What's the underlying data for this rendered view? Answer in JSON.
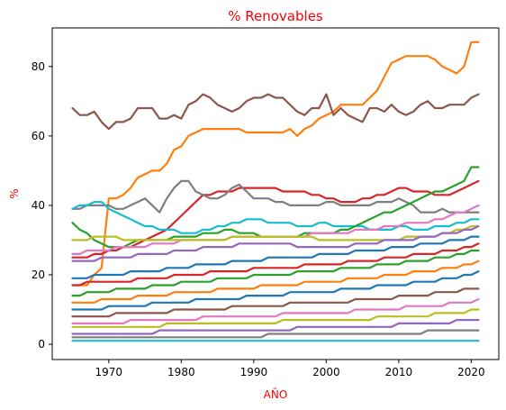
{
  "chart_data": {
    "type": "line",
    "title": "% Renovables",
    "xlabel": "AÑO",
    "ylabel": "%",
    "label_color": "#ff0000",
    "xlim": [
      1962.2,
      2023.8
    ],
    "ylim": [
      -4.4,
      91.1
    ],
    "xticks": [
      1970,
      1980,
      1990,
      2000,
      2010,
      2020
    ],
    "yticks": [
      0,
      20,
      40,
      60,
      80
    ],
    "grid": false,
    "legend": "none",
    "palette": [
      "#1f77b4",
      "#ff7f0e",
      "#2ca02c",
      "#d62728",
      "#9467bd",
      "#8c564b",
      "#e377c2",
      "#7f7f7f",
      "#bcbd22",
      "#17becf"
    ],
    "x": [
      1965,
      1966,
      1967,
      1968,
      1969,
      1970,
      1971,
      1972,
      1973,
      1974,
      1975,
      1976,
      1977,
      1978,
      1979,
      1980,
      1981,
      1982,
      1983,
      1984,
      1985,
      1986,
      1987,
      1988,
      1989,
      1990,
      1991,
      1992,
      1993,
      1994,
      1995,
      1996,
      1997,
      1998,
      1999,
      2000,
      2001,
      2002,
      2003,
      2004,
      2005,
      2006,
      2007,
      2008,
      2009,
      2010,
      2011,
      2012,
      2013,
      2014,
      2015,
      2016,
      2017,
      2018,
      2019,
      2020,
      2021
    ],
    "series": [
      {
        "color": "#ff7f0e",
        "values": [
          17,
          17,
          17,
          20,
          22,
          42,
          42,
          43,
          45,
          48,
          49,
          50,
          50,
          52,
          56,
          57,
          60,
          61,
          62,
          62,
          62,
          62,
          62,
          62,
          61,
          61,
          61,
          61,
          61,
          61,
          62,
          60,
          62,
          63,
          65,
          66,
          67,
          69,
          69,
          69,
          69,
          71,
          73,
          77,
          81,
          82,
          83,
          83,
          83,
          83,
          82,
          80,
          79,
          78,
          80,
          87,
          87
        ]
      },
      {
        "color": "#8c564b",
        "values": [
          68,
          66,
          66,
          67,
          64,
          62,
          64,
          64,
          65,
          68,
          68,
          68,
          65,
          65,
          66,
          65,
          69,
          70,
          72,
          71,
          69,
          68,
          67,
          68,
          70,
          71,
          71,
          72,
          71,
          71,
          69,
          67,
          66,
          68,
          68,
          72,
          66,
          68,
          66,
          65,
          64,
          68,
          68,
          67,
          69,
          67,
          66,
          67,
          69,
          70,
          68,
          68,
          69,
          69,
          69,
          71,
          72
        ]
      },
      {
        "color": "#d62728",
        "values": [
          25,
          25,
          25,
          26,
          26,
          27,
          27,
          28,
          28,
          29,
          30,
          31,
          32,
          33,
          35,
          37,
          39,
          41,
          43,
          43,
          44,
          44,
          44,
          45,
          45,
          45,
          45,
          45,
          45,
          44,
          44,
          44,
          44,
          43,
          43,
          42,
          42,
          41,
          41,
          41,
          42,
          42,
          43,
          43,
          44,
          45,
          45,
          44,
          44,
          44,
          43,
          43,
          43,
          44,
          45,
          46,
          47
        ]
      },
      {
        "color": "#7f7f7f",
        "values": [
          39,
          39,
          40,
          40,
          40,
          40,
          39,
          39,
          40,
          41,
          42,
          40,
          38,
          42,
          45,
          47,
          47,
          44,
          43,
          42,
          42,
          43,
          45,
          46,
          44,
          42,
          42,
          42,
          41,
          41,
          40,
          40,
          40,
          40,
          40,
          41,
          41,
          40,
          40,
          40,
          40,
          40,
          41,
          41,
          41,
          42,
          41,
          40,
          38,
          38,
          38,
          39,
          38,
          38,
          38,
          38,
          38
        ]
      },
      {
        "color": "#17becf",
        "values": [
          39,
          40,
          40,
          41,
          41,
          39,
          38,
          37,
          36,
          35,
          34,
          34,
          33,
          33,
          33,
          32,
          32,
          32,
          33,
          33,
          34,
          34,
          35,
          35,
          36,
          36,
          36,
          35,
          35,
          35,
          35,
          34,
          34,
          34,
          35,
          35,
          34,
          34,
          34,
          34,
          34,
          33,
          33,
          33,
          33,
          34,
          34,
          33,
          33,
          33,
          34,
          34,
          34,
          35,
          35,
          36,
          36
        ]
      },
      {
        "color": "#2ca02c",
        "values": [
          35,
          33,
          32,
          30,
          29,
          28,
          28,
          28,
          29,
          30,
          30,
          30,
          30,
          30,
          31,
          31,
          31,
          31,
          32,
          32,
          32,
          33,
          33,
          32,
          32,
          32,
          31,
          31,
          31,
          31,
          31,
          31,
          32,
          32,
          32,
          32,
          32,
          33,
          33,
          34,
          35,
          36,
          37,
          38,
          38,
          39,
          40,
          41,
          42,
          43,
          44,
          44,
          45,
          46,
          47,
          51,
          51
        ]
      },
      {
        "color": "#e377c2",
        "values": [
          26,
          26,
          27,
          27,
          27,
          27,
          28,
          28,
          28,
          28,
          28,
          29,
          29,
          29,
          29,
          30,
          30,
          30,
          30,
          30,
          30,
          30,
          31,
          31,
          31,
          31,
          31,
          31,
          31,
          31,
          31,
          31,
          31,
          32,
          32,
          32,
          32,
          32,
          32,
          33,
          33,
          33,
          33,
          34,
          34,
          34,
          35,
          35,
          35,
          35,
          36,
          36,
          37,
          38,
          38,
          39,
          40
        ]
      },
      {
        "color": "#bcbd22",
        "values": [
          30,
          30,
          30,
          31,
          31,
          31,
          31,
          30,
          30,
          30,
          30,
          30,
          30,
          30,
          30,
          30,
          30,
          30,
          30,
          30,
          30,
          30,
          31,
          31,
          31,
          31,
          31,
          31,
          31,
          31,
          31,
          31,
          31,
          31,
          30,
          30,
          30,
          30,
          30,
          30,
          30,
          30,
          30,
          30,
          30,
          30,
          31,
          31,
          31,
          31,
          31,
          32,
          32,
          33,
          33,
          34,
          34
        ]
      },
      {
        "color": "#9467bd",
        "values": [
          24,
          24,
          24,
          24,
          25,
          25,
          25,
          25,
          25,
          26,
          26,
          26,
          26,
          26,
          27,
          27,
          27,
          27,
          28,
          28,
          28,
          28,
          28,
          29,
          29,
          29,
          29,
          29,
          29,
          29,
          29,
          28,
          28,
          28,
          28,
          28,
          28,
          28,
          28,
          29,
          29,
          29,
          29,
          30,
          30,
          30,
          30,
          30,
          31,
          31,
          31,
          32,
          32,
          32,
          33,
          33,
          34
        ]
      },
      {
        "color": "#1f77b4",
        "values": [
          19,
          19,
          19,
          20,
          20,
          20,
          20,
          20,
          21,
          21,
          21,
          21,
          21,
          22,
          22,
          22,
          22,
          23,
          23,
          23,
          23,
          23,
          24,
          24,
          24,
          24,
          24,
          25,
          25,
          25,
          25,
          25,
          25,
          25,
          26,
          26,
          26,
          26,
          26,
          27,
          27,
          27,
          27,
          27,
          28,
          28,
          28,
          28,
          29,
          29,
          29,
          29,
          30,
          30,
          30,
          31,
          31
        ]
      },
      {
        "color": "#d62728",
        "values": [
          17,
          17,
          18,
          18,
          18,
          18,
          18,
          18,
          18,
          19,
          19,
          19,
          19,
          19,
          20,
          20,
          20,
          20,
          20,
          21,
          21,
          21,
          21,
          21,
          21,
          22,
          22,
          22,
          22,
          22,
          22,
          22,
          23,
          23,
          23,
          23,
          23,
          23,
          24,
          24,
          24,
          24,
          24,
          25,
          25,
          25,
          25,
          26,
          26,
          26,
          26,
          27,
          27,
          27,
          28,
          28,
          29
        ]
      },
      {
        "color": "#2ca02c",
        "values": [
          14,
          14,
          15,
          15,
          15,
          15,
          16,
          16,
          16,
          16,
          16,
          17,
          17,
          17,
          17,
          18,
          18,
          18,
          18,
          18,
          19,
          19,
          19,
          19,
          19,
          20,
          20,
          20,
          20,
          20,
          20,
          21,
          21,
          21,
          21,
          21,
          21,
          22,
          22,
          22,
          22,
          22,
          23,
          23,
          23,
          23,
          24,
          24,
          24,
          24,
          25,
          25,
          25,
          26,
          26,
          27,
          27
        ]
      },
      {
        "color": "#ff7f0e",
        "values": [
          12,
          12,
          12,
          12,
          13,
          13,
          13,
          13,
          13,
          14,
          14,
          14,
          14,
          14,
          15,
          15,
          15,
          15,
          15,
          15,
          16,
          16,
          16,
          16,
          16,
          16,
          17,
          17,
          17,
          17,
          17,
          17,
          18,
          18,
          18,
          18,
          18,
          18,
          19,
          19,
          19,
          19,
          19,
          20,
          20,
          20,
          20,
          21,
          21,
          21,
          21,
          22,
          22,
          22,
          23,
          23,
          24
        ]
      },
      {
        "color": "#1f77b4",
        "values": [
          10,
          10,
          10,
          10,
          10,
          11,
          11,
          11,
          11,
          11,
          11,
          12,
          12,
          12,
          12,
          12,
          12,
          13,
          13,
          13,
          13,
          13,
          13,
          13,
          14,
          14,
          14,
          14,
          14,
          14,
          15,
          15,
          15,
          15,
          15,
          15,
          15,
          16,
          16,
          16,
          16,
          16,
          17,
          17,
          17,
          17,
          17,
          18,
          18,
          18,
          18,
          19,
          19,
          19,
          20,
          20,
          21
        ]
      },
      {
        "color": "#8c564b",
        "values": [
          8,
          8,
          8,
          8,
          8,
          8,
          9,
          9,
          9,
          9,
          9,
          9,
          9,
          9,
          10,
          10,
          10,
          10,
          10,
          10,
          10,
          10,
          11,
          11,
          11,
          11,
          11,
          11,
          11,
          11,
          12,
          12,
          12,
          12,
          12,
          12,
          12,
          12,
          12,
          13,
          13,
          13,
          13,
          13,
          13,
          14,
          14,
          14,
          14,
          14,
          15,
          15,
          15,
          15,
          16,
          16,
          16
        ]
      },
      {
        "color": "#e377c2",
        "values": [
          6,
          6,
          6,
          6,
          6,
          6,
          6,
          6,
          7,
          7,
          7,
          7,
          7,
          7,
          7,
          7,
          7,
          7,
          8,
          8,
          8,
          8,
          8,
          8,
          8,
          8,
          8,
          8,
          8,
          9,
          9,
          9,
          9,
          9,
          9,
          9,
          9,
          9,
          9,
          10,
          10,
          10,
          10,
          10,
          10,
          10,
          11,
          11,
          11,
          11,
          11,
          11,
          12,
          12,
          12,
          12,
          13
        ]
      },
      {
        "color": "#bcbd22",
        "values": [
          5,
          5,
          5,
          5,
          5,
          5,
          5,
          5,
          5,
          5,
          5,
          5,
          5,
          6,
          6,
          6,
          6,
          6,
          6,
          6,
          6,
          6,
          6,
          6,
          6,
          6,
          6,
          6,
          6,
          7,
          7,
          7,
          7,
          7,
          7,
          7,
          7,
          7,
          7,
          7,
          7,
          7,
          8,
          8,
          8,
          8,
          8,
          8,
          8,
          8,
          9,
          9,
          9,
          9,
          9,
          10,
          10
        ]
      },
      {
        "color": "#9467bd",
        "values": [
          3,
          3,
          3,
          3,
          3,
          3,
          3,
          3,
          3,
          3,
          3,
          3,
          4,
          4,
          4,
          4,
          4,
          4,
          4,
          4,
          4,
          4,
          4,
          4,
          4,
          4,
          4,
          4,
          4,
          4,
          4,
          5,
          5,
          5,
          5,
          5,
          5,
          5,
          5,
          5,
          5,
          5,
          5,
          5,
          5,
          6,
          6,
          6,
          6,
          6,
          6,
          6,
          6,
          7,
          7,
          7,
          7
        ]
      },
      {
        "color": "#7f7f7f",
        "values": [
          2,
          2,
          2,
          2,
          2,
          2,
          2,
          2,
          2,
          2,
          2,
          2,
          2,
          2,
          2,
          2,
          2,
          2,
          2,
          2,
          2,
          2,
          2,
          2,
          2,
          2,
          2,
          3,
          3,
          3,
          3,
          3,
          3,
          3,
          3,
          3,
          3,
          3,
          3,
          3,
          3,
          3,
          3,
          3,
          3,
          3,
          3,
          3,
          3,
          4,
          4,
          4,
          4,
          4,
          4,
          4,
          4
        ]
      },
      {
        "color": "#17becf",
        "values": [
          1,
          1,
          1,
          1,
          1,
          1,
          1,
          1,
          1,
          1,
          1,
          1,
          1,
          1,
          1,
          1,
          1,
          1,
          1,
          1,
          1,
          1,
          1,
          1,
          1,
          1,
          1,
          1,
          1,
          1,
          1,
          1,
          1,
          1,
          1,
          1,
          1,
          1,
          1,
          1,
          1,
          1,
          1,
          1,
          1,
          1,
          1,
          1,
          1,
          1,
          1,
          1,
          1,
          1,
          1,
          1,
          1
        ]
      }
    ]
  }
}
